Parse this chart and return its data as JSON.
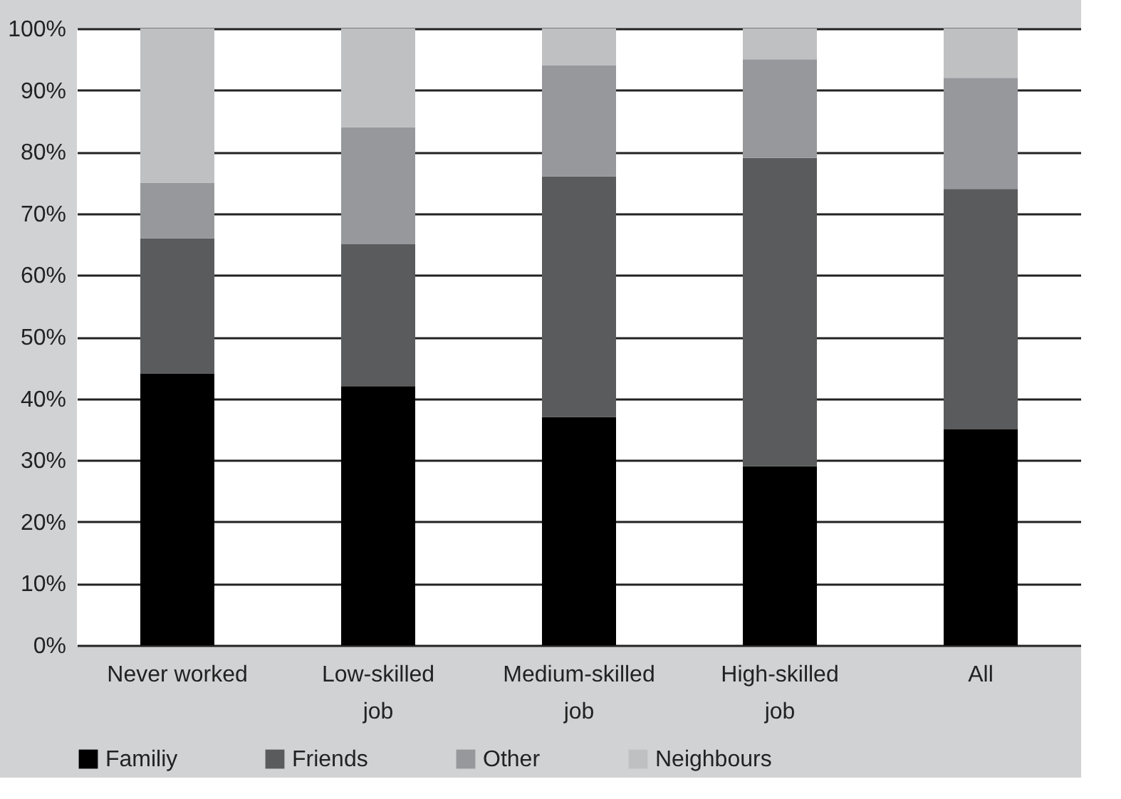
{
  "chart_data": {
    "type": "bar",
    "stacked": true,
    "categories": [
      "Never worked",
      "Low-skilled job",
      "Medium-skilled job",
      "High-skilled job",
      "All"
    ],
    "series": [
      {
        "name": "Familiy",
        "color": "#000000",
        "values": [
          44,
          42,
          37,
          29,
          35
        ]
      },
      {
        "name": "Friends",
        "color": "#5a5b5d",
        "values": [
          22,
          23,
          39,
          50,
          39
        ]
      },
      {
        "name": "Other",
        "color": "#97989b",
        "values": [
          9,
          19,
          18,
          16,
          18
        ]
      },
      {
        "name": "Neighbours",
        "color": "#bfc0c2",
        "values": [
          25,
          16,
          6,
          5,
          8
        ]
      }
    ],
    "ylim": [
      0,
      100
    ],
    "yticks": [
      {
        "value": 0,
        "label": "0%"
      },
      {
        "value": 10,
        "label": "10%"
      },
      {
        "value": 20,
        "label": "20%"
      },
      {
        "value": 30,
        "label": "30%"
      },
      {
        "value": 40,
        "label": "40%"
      },
      {
        "value": 50,
        "label": "50%"
      },
      {
        "value": 60,
        "label": "60%"
      },
      {
        "value": 70,
        "label": "70%"
      },
      {
        "value": 80,
        "label": "80%"
      },
      {
        "value": 90,
        "label": "90%"
      },
      {
        "value": 100,
        "label": "100%"
      }
    ],
    "grid": "y",
    "legend": "bottom"
  }
}
